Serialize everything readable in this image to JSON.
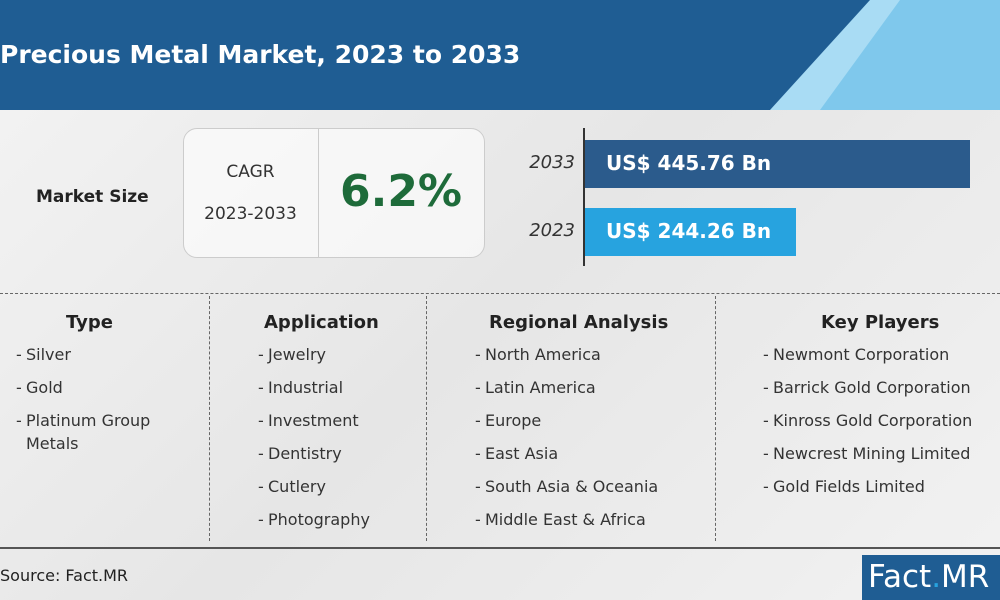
{
  "header": {
    "title": "Precious Metal Market, 2023 to 2033"
  },
  "market_size": {
    "label": "Market Size",
    "cagr_label": "CAGR",
    "cagr_period": "2023-2033",
    "cagr_value": "6.2%",
    "bars": [
      {
        "year": "2033",
        "value": 445.76,
        "value_label": "US$ 445.76 Bn",
        "color": "#2b5b8c"
      },
      {
        "year": "2023",
        "value": 244.26,
        "value_label": "US$ 244.26 Bn",
        "color": "#27a3df"
      }
    ]
  },
  "segments": [
    {
      "title": "Type",
      "items": [
        "Silver",
        "Gold",
        "Platinum Group Metals"
      ]
    },
    {
      "title": "Application",
      "items": [
        "Jewelry",
        "Industrial",
        "Investment",
        "Dentistry",
        "Cutlery",
        "Photography"
      ]
    },
    {
      "title": "Regional Analysis",
      "items": [
        "North America",
        "Latin America",
        "Europe",
        "East Asia",
        "South Asia & Oceania",
        "Middle East & Africa"
      ]
    },
    {
      "title": "Key Players",
      "items": [
        "Newmont Corporation",
        "Barrick Gold Corporation",
        "Kinross Gold Corporation",
        "Newcrest Mining Limited",
        "Gold Fields Limited"
      ]
    }
  ],
  "footer": {
    "source": "Source: Fact.MR",
    "logo_left": "Fact",
    "logo_right": "MR"
  }
}
